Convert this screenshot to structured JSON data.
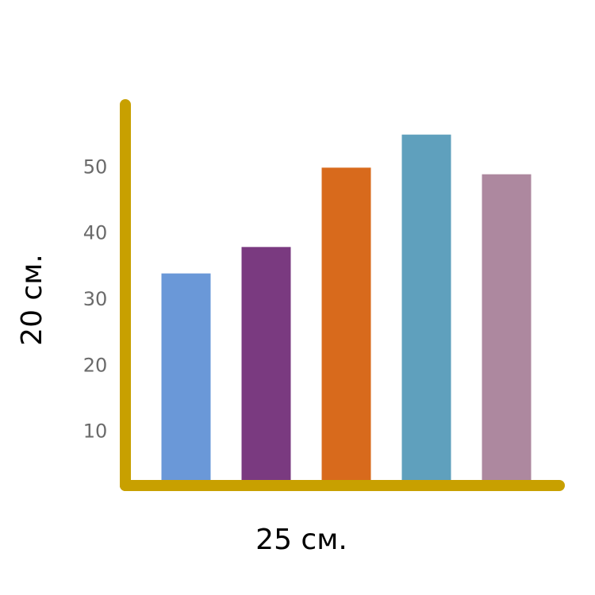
{
  "chart_data": {
    "type": "bar",
    "y_label": "20 см.",
    "x_label": "25 см.",
    "categories": [
      null,
      null,
      null,
      null,
      null
    ],
    "values": [
      34,
      38,
      50,
      55,
      49
    ],
    "colors": [
      "#6a98d8",
      "#7a3a80",
      "#d86a1c",
      "#5fa0bd",
      "#ad889f"
    ],
    "ylim": [
      0,
      60
    ],
    "yticks": [
      10,
      20,
      30,
      40,
      50
    ]
  }
}
